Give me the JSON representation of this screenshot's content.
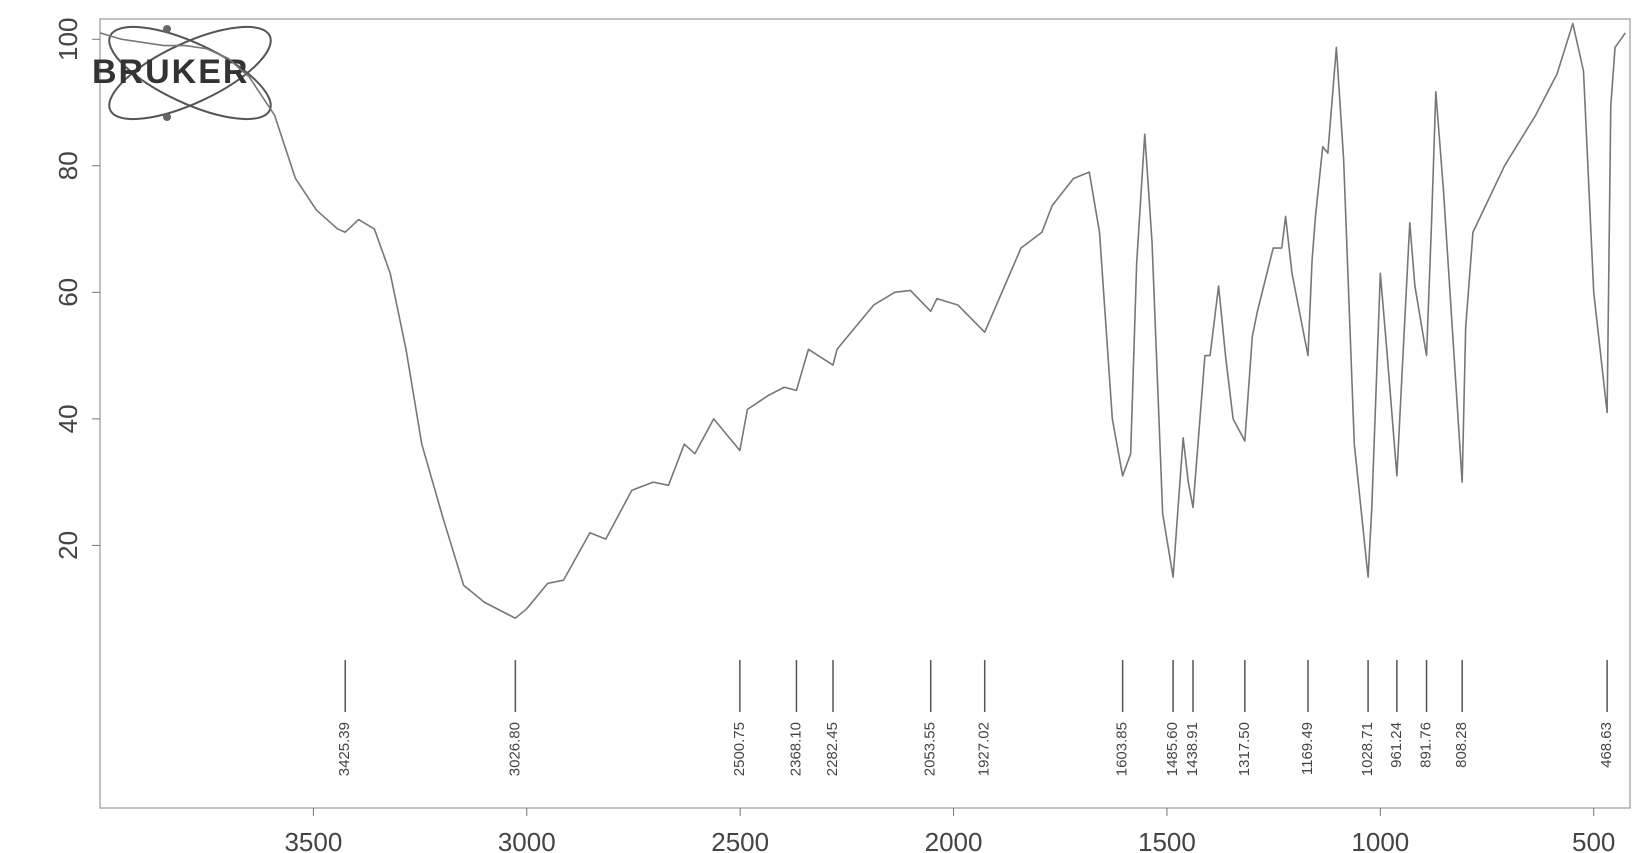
{
  "chart_data": {
    "type": "line",
    "logo": "BRUKER",
    "color": "#777777",
    "xlim": [
      4000,
      415
    ],
    "ylim": [
      -21.5,
      103.2
    ],
    "xticks": [
      3500,
      3000,
      2500,
      2000,
      1500,
      1000,
      500
    ],
    "yticks": [
      20,
      40,
      60,
      80,
      100
    ],
    "x": [
      4000,
      3950,
      3900,
      3850,
      3800,
      3750,
      3700,
      3650,
      3591,
      3542,
      3493,
      3443,
      3425.39,
      3394,
      3357,
      3320,
      3283,
      3246,
      3197,
      3148,
      3099,
      3026.8,
      3000,
      2951,
      2914,
      2852,
      2815,
      2754,
      2704,
      2668,
      2631,
      2606,
      2562,
      2500.75,
      2483,
      2434,
      2397,
      2368.1,
      2340,
      2282.45,
      2273,
      2224,
      2187,
      2138,
      2101,
      2053.55,
      2039,
      1990,
      1927.02,
      1904,
      1842,
      1793,
      1769,
      1719,
      1682,
      1658,
      1628,
      1603.85,
      1585,
      1571,
      1552,
      1535,
      1510,
      1485.6,
      1475,
      1462,
      1450,
      1438.91,
      1425,
      1411,
      1399,
      1379,
      1362,
      1345,
      1317.5,
      1300,
      1288,
      1251,
      1231,
      1222,
      1207,
      1169.49,
      1160,
      1152,
      1135,
      1123,
      1103,
      1086,
      1061,
      1028.71,
      1020,
      1000,
      985,
      961.24,
      948,
      931,
      919,
      891.76,
      880,
      870,
      852,
      808.28,
      800,
      783,
      709,
      636,
      586,
      549,
      524,
      500,
      468.63,
      460,
      450,
      426
    ],
    "values": [
      101,
      100,
      99.5,
      99,
      99,
      98.5,
      97,
      94,
      88,
      78,
      73,
      70,
      69.5,
      71.5,
      70,
      63,
      51,
      36,
      24.5,
      13.7,
      11,
      8.5,
      10,
      14,
      14.5,
      22,
      21,
      28.7,
      30,
      29.5,
      36,
      34.5,
      40,
      35,
      41.5,
      43.7,
      45,
      44.5,
      51,
      48.5,
      51,
      55,
      58,
      60,
      60.3,
      57,
      59,
      58,
      53.7,
      57.3,
      67,
      69.5,
      73.7,
      78,
      79,
      69.5,
      40,
      31,
      34.5,
      64.5,
      85,
      68,
      25,
      15,
      25,
      37,
      30,
      26,
      38,
      50,
      50,
      61,
      49.5,
      40,
      36.5,
      53,
      57,
      67,
      67,
      72,
      63,
      50,
      65,
      72,
      83,
      82,
      98.7,
      81,
      36,
      15,
      26,
      63,
      51,
      31,
      48.7,
      71,
      61,
      50,
      71,
      91.7,
      76,
      30,
      54.5,
      69.5,
      80,
      88,
      94.5,
      102.5,
      95,
      60,
      41,
      89.5,
      98.7,
      101
    ],
    "peaks": [
      3425.39,
      {
        "value": 3026.8,
        "label": "3026.80"
      },
      2500.75,
      {
        "value": 2368.1,
        "label": "2368.10"
      },
      2282.45,
      2053.55,
      1927.02,
      1603.85,
      {
        "value": 1485.6,
        "label": "1485.60"
      },
      1438.91,
      {
        "value": 1317.5,
        "label": "1317.50"
      },
      1169.49,
      1028.71,
      961.24,
      891.76,
      808.28,
      468.63
    ]
  }
}
